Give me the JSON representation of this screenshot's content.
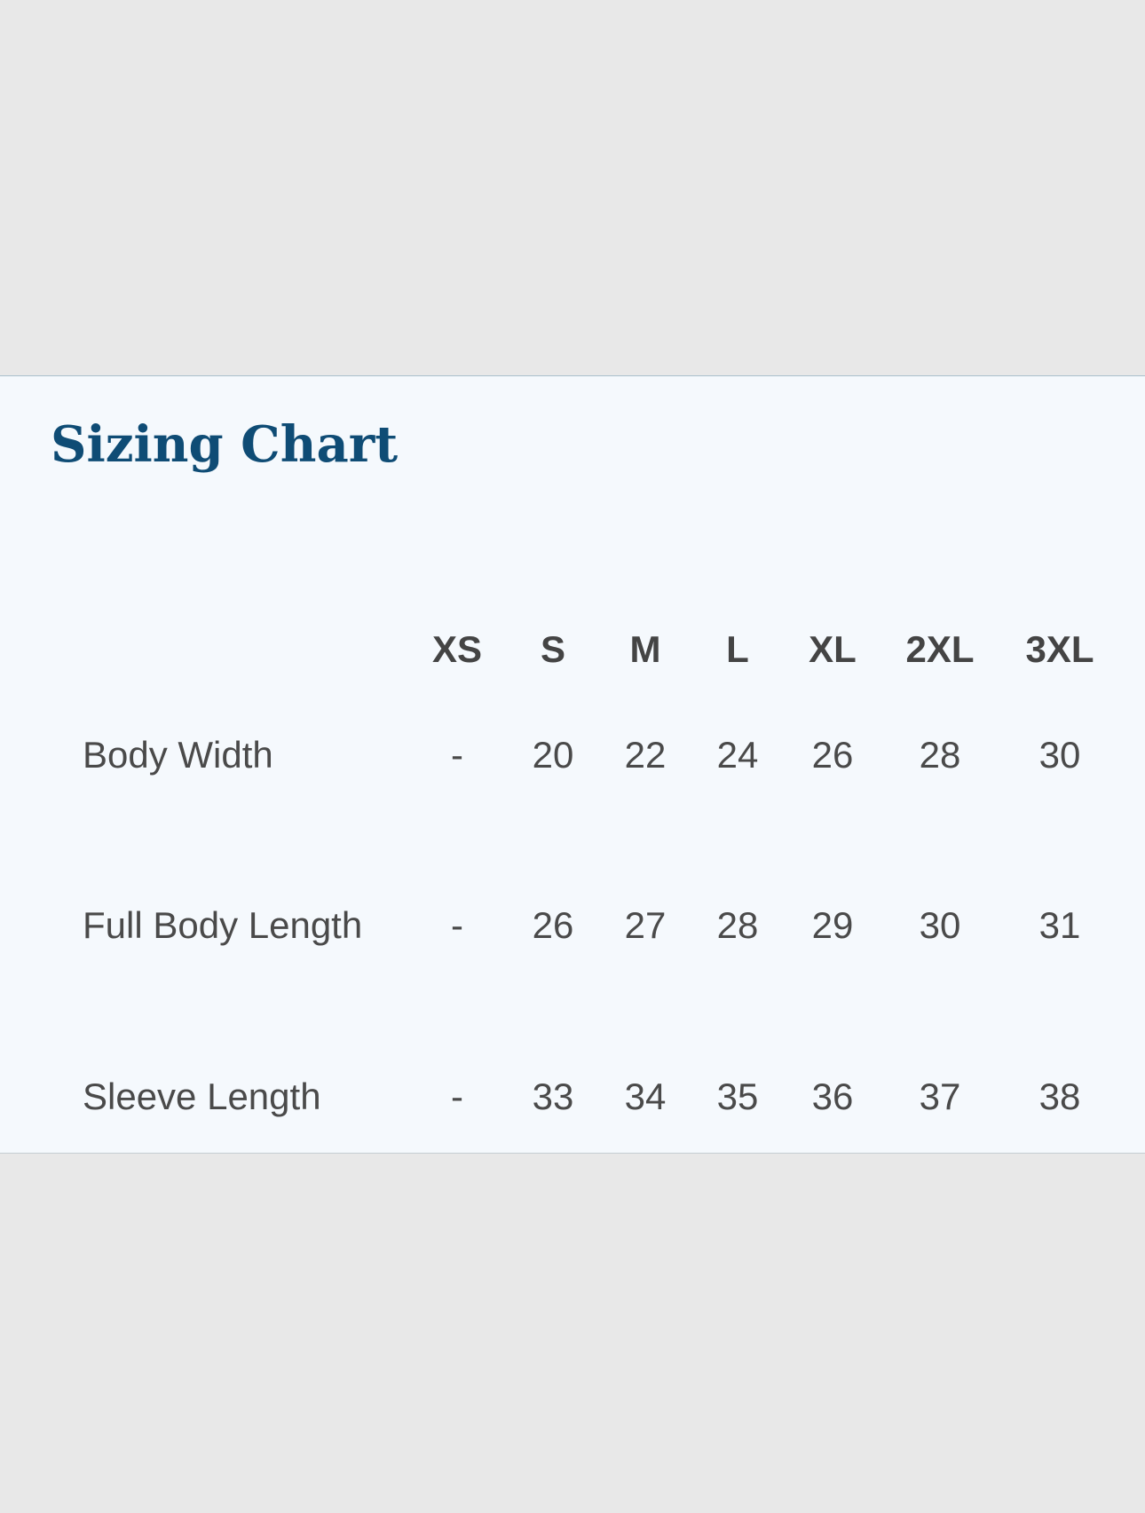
{
  "title": "Sizing Chart",
  "columns": [
    "XS",
    "S",
    "M",
    "L",
    "XL",
    "2XL",
    "3XL"
  ],
  "rows": [
    {
      "label": "Body Width",
      "values": [
        "-",
        "20",
        "22",
        "24",
        "26",
        "28",
        "30"
      ]
    },
    {
      "label": "Full Body Length",
      "values": [
        "-",
        "26",
        "27",
        "28",
        "29",
        "30",
        "31"
      ]
    },
    {
      "label": "Sleeve Length",
      "values": [
        "-",
        "33",
        "34",
        "35",
        "36",
        "37",
        "38"
      ]
    }
  ],
  "colors": {
    "background": "#e8e8e8",
    "panel": "#f5f9fd",
    "title": "#0f4c75",
    "text": "#4a4a4a"
  }
}
